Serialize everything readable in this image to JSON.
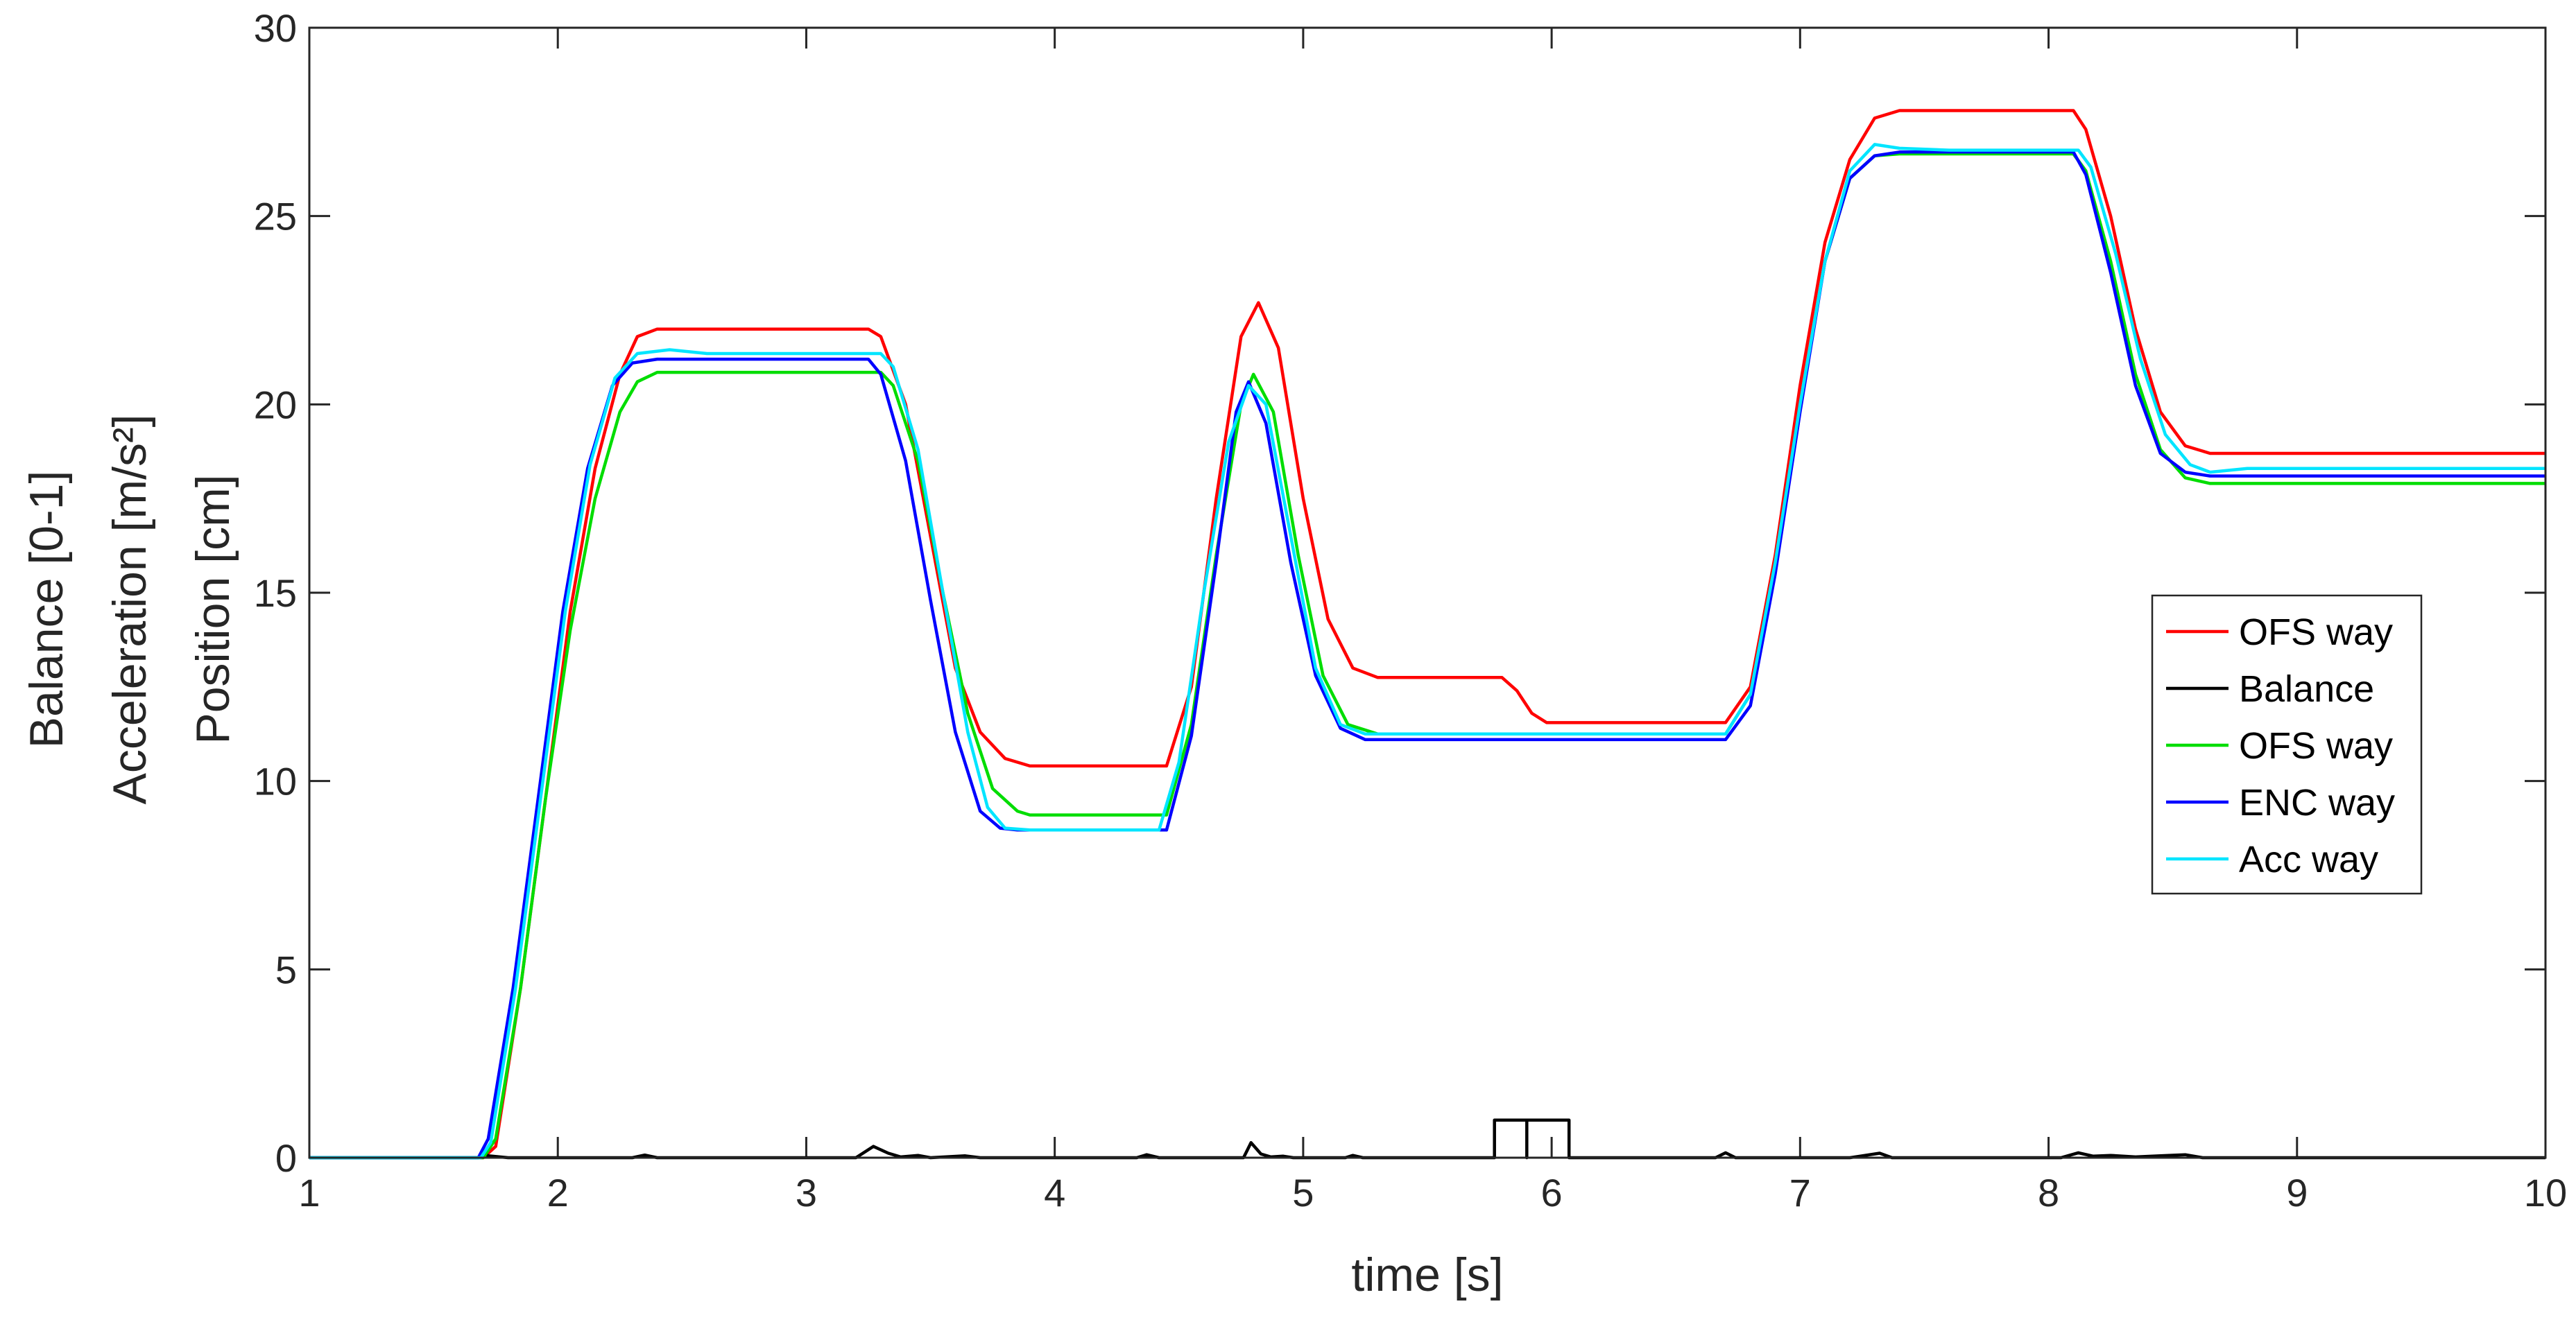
{
  "chart_data": {
    "type": "line",
    "title": "",
    "xlabel": "time [s]",
    "ylabel_lines": [
      "Balance [0-1]",
      "Acceleration [m/s²]",
      "Position [cm]"
    ],
    "xlim": [
      1,
      10
    ],
    "ylim": [
      0,
      30
    ],
    "xticks": [
      "1",
      "2",
      "3",
      "4",
      "5",
      "6",
      "7",
      "8",
      "9",
      "10"
    ],
    "yticks": [
      "0",
      "5",
      "10",
      "15",
      "20",
      "25",
      "30"
    ],
    "grid": false,
    "legend_position": "right",
    "series": [
      {
        "name": "OFS way",
        "color": "#ff0000",
        "points": [
          [
            1.0,
            0
          ],
          [
            1.7,
            0
          ],
          [
            1.75,
            0.3
          ],
          [
            1.85,
            4.5
          ],
          [
            1.95,
            9.5
          ],
          [
            2.05,
            14.5
          ],
          [
            2.15,
            18.3
          ],
          [
            2.25,
            20.8
          ],
          [
            2.32,
            21.8
          ],
          [
            2.4,
            22.0
          ],
          [
            3.25,
            22.0
          ],
          [
            3.3,
            21.8
          ],
          [
            3.4,
            20.0
          ],
          [
            3.5,
            16.5
          ],
          [
            3.6,
            13.0
          ],
          [
            3.7,
            11.3
          ],
          [
            3.8,
            10.6
          ],
          [
            3.9,
            10.4
          ],
          [
            4.45,
            10.4
          ],
          [
            4.55,
            12.5
          ],
          [
            4.65,
            17.5
          ],
          [
            4.75,
            21.8
          ],
          [
            4.82,
            22.7
          ],
          [
            4.9,
            21.5
          ],
          [
            5.0,
            17.5
          ],
          [
            5.1,
            14.3
          ],
          [
            5.2,
            13.0
          ],
          [
            5.3,
            12.75
          ],
          [
            5.8,
            12.75
          ],
          [
            5.86,
            12.4
          ],
          [
            5.92,
            11.8
          ],
          [
            5.98,
            11.55
          ],
          [
            6.7,
            11.55
          ],
          [
            6.8,
            12.5
          ],
          [
            6.9,
            16.0
          ],
          [
            7.0,
            20.5
          ],
          [
            7.1,
            24.3
          ],
          [
            7.2,
            26.5
          ],
          [
            7.3,
            27.6
          ],
          [
            7.4,
            27.8
          ],
          [
            8.1,
            27.8
          ],
          [
            8.15,
            27.3
          ],
          [
            8.25,
            25.0
          ],
          [
            8.35,
            22.0
          ],
          [
            8.45,
            19.8
          ],
          [
            8.55,
            18.9
          ],
          [
            8.65,
            18.7
          ],
          [
            10.0,
            18.7
          ]
        ]
      },
      {
        "name": "Balance",
        "color": "#000000",
        "points": [
          [
            1.0,
            0
          ],
          [
            1.68,
            0
          ],
          [
            1.7,
            0.15
          ],
          [
            1.72,
            0.05
          ],
          [
            1.8,
            0
          ],
          [
            2.3,
            0
          ],
          [
            2.35,
            0.07
          ],
          [
            2.4,
            0
          ],
          [
            3.2,
            0
          ],
          [
            3.27,
            0.3
          ],
          [
            3.33,
            0.12
          ],
          [
            3.38,
            0.02
          ],
          [
            3.45,
            0.06
          ],
          [
            3.5,
            0
          ],
          [
            3.64,
            0.05
          ],
          [
            3.7,
            0
          ],
          [
            4.33,
            0
          ],
          [
            4.37,
            0.08
          ],
          [
            4.42,
            0
          ],
          [
            4.76,
            0
          ],
          [
            4.79,
            0.4
          ],
          [
            4.83,
            0.1
          ],
          [
            4.87,
            0.02
          ],
          [
            4.92,
            0.04
          ],
          [
            4.96,
            0
          ],
          [
            5.17,
            0
          ],
          [
            5.2,
            0.06
          ],
          [
            5.24,
            0
          ],
          [
            5.77,
            0
          ],
          [
            5.77,
            1.0
          ],
          [
            5.9,
            1.0
          ],
          [
            5.9,
            0
          ],
          [
            5.9,
            1.0
          ],
          [
            6.07,
            1.0
          ],
          [
            6.07,
            0
          ],
          [
            6.66,
            0
          ],
          [
            6.7,
            0.13
          ],
          [
            6.74,
            0
          ],
          [
            7.2,
            0
          ],
          [
            7.25,
            0.05
          ],
          [
            7.32,
            0.12
          ],
          [
            7.37,
            0
          ],
          [
            8.05,
            0
          ],
          [
            8.12,
            0.13
          ],
          [
            8.18,
            0.04
          ],
          [
            8.25,
            0.06
          ],
          [
            8.35,
            0.02
          ],
          [
            8.45,
            0.05
          ],
          [
            8.55,
            0.08
          ],
          [
            8.62,
            0
          ],
          [
            10.0,
            0
          ]
        ]
      },
      {
        "name": "OFS way",
        "color": "#00dd00",
        "points": [
          [
            1.0,
            0
          ],
          [
            1.7,
            0
          ],
          [
            1.75,
            0.5
          ],
          [
            1.85,
            4.5
          ],
          [
            1.95,
            9.5
          ],
          [
            2.05,
            14.0
          ],
          [
            2.15,
            17.5
          ],
          [
            2.25,
            19.8
          ],
          [
            2.32,
            20.6
          ],
          [
            2.4,
            20.85
          ],
          [
            3.3,
            20.85
          ],
          [
            3.35,
            20.5
          ],
          [
            3.45,
            18.5
          ],
          [
            3.55,
            15.0
          ],
          [
            3.65,
            11.8
          ],
          [
            3.75,
            9.8
          ],
          [
            3.85,
            9.2
          ],
          [
            3.9,
            9.1
          ],
          [
            4.45,
            9.1
          ],
          [
            4.55,
            11.5
          ],
          [
            4.65,
            16.0
          ],
          [
            4.75,
            20.0
          ],
          [
            4.8,
            20.8
          ],
          [
            4.88,
            19.8
          ],
          [
            4.98,
            16.0
          ],
          [
            5.08,
            12.8
          ],
          [
            5.18,
            11.5
          ],
          [
            5.3,
            11.25
          ],
          [
            6.7,
            11.25
          ],
          [
            6.8,
            12.3
          ],
          [
            6.9,
            15.8
          ],
          [
            7.0,
            20.0
          ],
          [
            7.1,
            23.8
          ],
          [
            7.2,
            26.0
          ],
          [
            7.3,
            26.6
          ],
          [
            7.4,
            26.65
          ],
          [
            8.1,
            26.65
          ],
          [
            8.15,
            26.2
          ],
          [
            8.25,
            23.8
          ],
          [
            8.35,
            20.8
          ],
          [
            8.45,
            18.8
          ],
          [
            8.55,
            18.05
          ],
          [
            8.65,
            17.9
          ],
          [
            10.0,
            17.9
          ]
        ]
      },
      {
        "name": "ENC way",
        "color": "#0000ff",
        "points": [
          [
            1.0,
            0
          ],
          [
            1.68,
            0
          ],
          [
            1.72,
            0.5
          ],
          [
            1.82,
            4.5
          ],
          [
            1.92,
            9.5
          ],
          [
            2.02,
            14.5
          ],
          [
            2.12,
            18.3
          ],
          [
            2.22,
            20.5
          ],
          [
            2.3,
            21.1
          ],
          [
            2.4,
            21.2
          ],
          [
            3.25,
            21.2
          ],
          [
            3.3,
            20.8
          ],
          [
            3.4,
            18.5
          ],
          [
            3.5,
            14.8
          ],
          [
            3.6,
            11.3
          ],
          [
            3.7,
            9.2
          ],
          [
            3.78,
            8.75
          ],
          [
            3.85,
            8.7
          ],
          [
            4.45,
            8.7
          ],
          [
            4.55,
            11.2
          ],
          [
            4.65,
            15.8
          ],
          [
            4.73,
            19.8
          ],
          [
            4.78,
            20.6
          ],
          [
            4.85,
            19.5
          ],
          [
            4.95,
            15.8
          ],
          [
            5.05,
            12.8
          ],
          [
            5.15,
            11.4
          ],
          [
            5.25,
            11.1
          ],
          [
            6.7,
            11.1
          ],
          [
            6.8,
            12.0
          ],
          [
            6.9,
            15.5
          ],
          [
            7.0,
            19.8
          ],
          [
            7.1,
            23.8
          ],
          [
            7.2,
            26.0
          ],
          [
            7.3,
            26.6
          ],
          [
            7.4,
            26.7
          ],
          [
            8.1,
            26.7
          ],
          [
            8.15,
            26.1
          ],
          [
            8.25,
            23.5
          ],
          [
            8.35,
            20.5
          ],
          [
            8.45,
            18.7
          ],
          [
            8.55,
            18.2
          ],
          [
            8.65,
            18.1
          ],
          [
            10.0,
            18.1
          ]
        ]
      },
      {
        "name": "Acc way",
        "color": "#00e5ff",
        "points": [
          [
            1.0,
            0
          ],
          [
            1.69,
            0
          ],
          [
            1.73,
            0.4
          ],
          [
            1.83,
            4.5
          ],
          [
            1.93,
            9.5
          ],
          [
            2.03,
            14.5
          ],
          [
            2.13,
            18.4
          ],
          [
            2.23,
            20.7
          ],
          [
            2.32,
            21.35
          ],
          [
            2.45,
            21.45
          ],
          [
            2.6,
            21.35
          ],
          [
            3.3,
            21.35
          ],
          [
            3.35,
            21.0
          ],
          [
            3.45,
            18.8
          ],
          [
            3.55,
            15.0
          ],
          [
            3.65,
            11.3
          ],
          [
            3.73,
            9.3
          ],
          [
            3.8,
            8.75
          ],
          [
            3.9,
            8.7
          ],
          [
            4.42,
            8.7
          ],
          [
            4.5,
            10.5
          ],
          [
            4.6,
            15.0
          ],
          [
            4.7,
            19.0
          ],
          [
            4.78,
            20.5
          ],
          [
            4.85,
            20.0
          ],
          [
            4.95,
            16.5
          ],
          [
            5.05,
            13.0
          ],
          [
            5.15,
            11.5
          ],
          [
            5.25,
            11.25
          ],
          [
            6.7,
            11.25
          ],
          [
            6.8,
            12.3
          ],
          [
            6.9,
            15.8
          ],
          [
            7.0,
            20.0
          ],
          [
            7.1,
            23.8
          ],
          [
            7.2,
            26.2
          ],
          [
            7.3,
            26.9
          ],
          [
            7.4,
            26.8
          ],
          [
            7.6,
            26.75
          ],
          [
            8.12,
            26.75
          ],
          [
            8.17,
            26.3
          ],
          [
            8.27,
            24.0
          ],
          [
            8.37,
            21.2
          ],
          [
            8.47,
            19.2
          ],
          [
            8.57,
            18.4
          ],
          [
            8.65,
            18.2
          ],
          [
            8.8,
            18.3
          ],
          [
            10.0,
            18.3
          ]
        ]
      }
    ]
  }
}
